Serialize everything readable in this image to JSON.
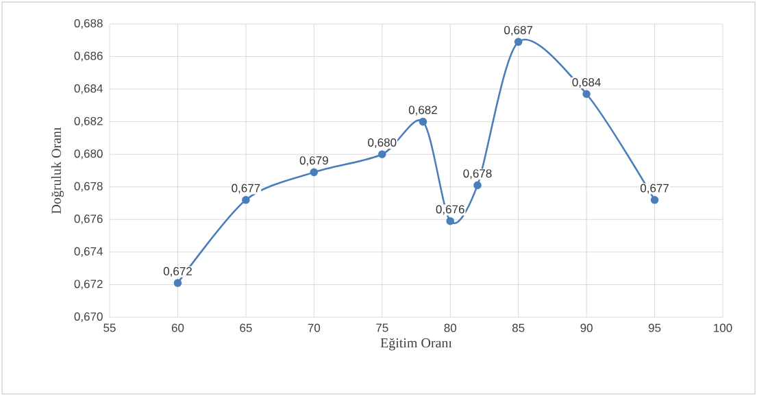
{
  "chart_data": {
    "type": "line",
    "xlabel": "Eğitim Oranı",
    "ylabel": "Doğruluk Oranı",
    "x": [
      60,
      65,
      70,
      75,
      78,
      80,
      82,
      85,
      90,
      95
    ],
    "series": [
      {
        "color": "#4a7ebb",
        "values": [
          0.6721,
          0.6772,
          0.6789,
          0.68,
          0.682,
          0.6759,
          0.6781,
          0.6869,
          0.6837,
          0.6772
        ],
        "value_labels": [
          "0,672",
          "0,677",
          "0,679",
          "0,680",
          "0,682",
          "0,676",
          "0,678",
          "0,687",
          "0,684",
          "0,677"
        ]
      }
    ],
    "xlim": [
      55,
      100
    ],
    "xticks": [
      55,
      60,
      65,
      70,
      75,
      80,
      85,
      90,
      95,
      100
    ],
    "ylim": [
      0.67,
      0.688
    ],
    "yticks": [
      {
        "value": 0.67,
        "label": "0,670"
      },
      {
        "value": 0.672,
        "label": "0,672"
      },
      {
        "value": 0.674,
        "label": "0,674"
      },
      {
        "value": 0.676,
        "label": "0,676"
      },
      {
        "value": 0.678,
        "label": "0,678"
      },
      {
        "value": 0.68,
        "label": "0,680"
      },
      {
        "value": 0.682,
        "label": "0,682"
      },
      {
        "value": 0.684,
        "label": "0,684"
      },
      {
        "value": 0.686,
        "label": "0,686"
      },
      {
        "value": 0.688,
        "label": "0,688"
      }
    ],
    "grid": true,
    "marker": "circle",
    "line_style": "solid"
  }
}
